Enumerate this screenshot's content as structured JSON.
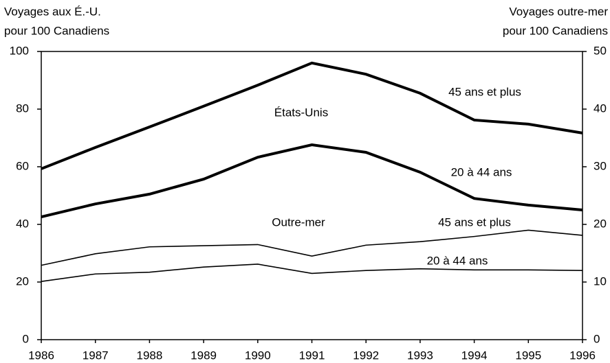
{
  "chart_data": {
    "type": "line",
    "y_label": [
      "Voyages aux É.-U.",
      "pour 100 Canadiens"
    ],
    "y2_label": [
      "Voyages outre-mer",
      "pour 100 Canadiens"
    ],
    "annotations": [
      "États-Unis",
      "Outre-mer"
    ],
    "x": [
      1986,
      1987,
      1988,
      1989,
      1990,
      1991,
      1992,
      1993,
      1994,
      1995,
      1996
    ],
    "xlim": [
      1986,
      1996
    ],
    "xticks": [
      1986,
      1987,
      1988,
      1989,
      1990,
      1991,
      1992,
      1993,
      1994,
      1995,
      1996
    ],
    "ylim": [
      0,
      100
    ],
    "yticks": [
      0,
      20,
      40,
      60,
      80,
      100
    ],
    "y2lim": [
      0,
      50
    ],
    "y2ticks": [
      0,
      10,
      20,
      30,
      40,
      50
    ],
    "series": [
      {
        "name": "45 ans et plus",
        "color": "#000000",
        "line_width": 4,
        "values": [
          59.3,
          66.7,
          73.8,
          81,
          88.3,
          96,
          92.1,
          85.5,
          76.2,
          74.8,
          71.7
        ]
      },
      {
        "name": "20 à 44 ans",
        "color": "#000000",
        "line_width": 4,
        "values": [
          42.6,
          47.1,
          50.5,
          55.7,
          63.3,
          67.6,
          65,
          58.1,
          49,
          46.7,
          45
        ]
      },
      {
        "name": "45 ans et plus",
        "color": "#000000",
        "line_width": 1.6,
        "axis": "y2",
        "values": [
          12.9,
          14.9,
          16.1,
          16.3,
          16.5,
          14.5,
          16.4,
          17,
          17.9,
          19,
          18.1
        ]
      },
      {
        "name": "20 à 44 ans",
        "color": "#000000",
        "line_width": 1.6,
        "axis": "y2",
        "values": [
          10.1,
          11.4,
          11.7,
          12.6,
          13.1,
          11.5,
          12,
          12.3,
          12.1,
          12.1,
          12
        ]
      }
    ]
  }
}
